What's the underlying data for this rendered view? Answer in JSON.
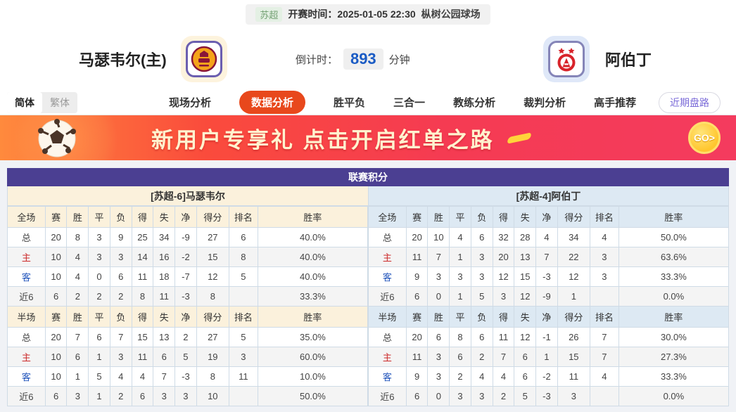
{
  "top_bar": {
    "league_badge": "苏超",
    "kickoff_text": "开赛时间：2025-01-05 22:30",
    "venue": "枞树公园球场"
  },
  "header": {
    "home_name": "马瑟韦尔(主)",
    "away_name": "阿伯丁",
    "countdown_label": "倒计时：",
    "countdown_value": "893",
    "countdown_unit": "分钟"
  },
  "nav": {
    "lang_simplified": "简体",
    "lang_traditional": "繁体",
    "tabs": [
      {
        "label": "现场分析",
        "active": false
      },
      {
        "label": "数据分析",
        "active": true
      },
      {
        "label": "胜平负",
        "active": false
      },
      {
        "label": "三合一",
        "active": false
      },
      {
        "label": "教练分析",
        "active": false
      },
      {
        "label": "裁判分析",
        "active": false
      },
      {
        "label": "高手推荐",
        "active": false
      }
    ],
    "recent_trend_button": "近期盘路"
  },
  "banner": {
    "headline": "新用户专享礼  点击开启红单之路",
    "go_label": "GO>"
  },
  "stats": {
    "title": "联赛积分",
    "columns_full": [
      "全场",
      "赛",
      "胜",
      "平",
      "负",
      "得",
      "失",
      "净",
      "得分",
      "排名",
      "胜率"
    ],
    "columns_half": [
      "半场",
      "赛",
      "胜",
      "平",
      "负",
      "得",
      "失",
      "净",
      "得分",
      "排名",
      "胜率"
    ],
    "home": {
      "team_header": "[苏超-6]马瑟韦尔",
      "full_rows": [
        {
          "label": "总",
          "type": "total-row",
          "values": [
            "20",
            "8",
            "3",
            "9",
            "25",
            "34",
            "-9",
            "27",
            "6",
            "40.0%"
          ]
        },
        {
          "label": "主",
          "type": "home-row",
          "values": [
            "10",
            "4",
            "3",
            "3",
            "14",
            "16",
            "-2",
            "15",
            "8",
            "40.0%"
          ]
        },
        {
          "label": "客",
          "type": "away-row",
          "values": [
            "10",
            "4",
            "0",
            "6",
            "11",
            "18",
            "-7",
            "12",
            "5",
            "40.0%"
          ]
        },
        {
          "label": "近6",
          "type": "recent-row",
          "values": [
            "6",
            "2",
            "2",
            "2",
            "8",
            "11",
            "-3",
            "8",
            "",
            "33.3%"
          ]
        }
      ],
      "half_rows": [
        {
          "label": "总",
          "type": "total-row",
          "values": [
            "20",
            "7",
            "6",
            "7",
            "15",
            "13",
            "2",
            "27",
            "5",
            "35.0%"
          ]
        },
        {
          "label": "主",
          "type": "home-row",
          "values": [
            "10",
            "6",
            "1",
            "3",
            "11",
            "6",
            "5",
            "19",
            "3",
            "60.0%"
          ]
        },
        {
          "label": "客",
          "type": "away-row",
          "values": [
            "10",
            "1",
            "5",
            "4",
            "4",
            "7",
            "-3",
            "8",
            "11",
            "10.0%"
          ]
        },
        {
          "label": "近6",
          "type": "recent-row",
          "values": [
            "6",
            "3",
            "1",
            "2",
            "6",
            "3",
            "3",
            "10",
            "",
            "50.0%"
          ]
        }
      ]
    },
    "away": {
      "team_header": "[苏超-4]阿伯丁",
      "full_rows": [
        {
          "label": "总",
          "type": "total-row",
          "values": [
            "20",
            "10",
            "4",
            "6",
            "32",
            "28",
            "4",
            "34",
            "4",
            "50.0%"
          ]
        },
        {
          "label": "主",
          "type": "home-row",
          "values": [
            "11",
            "7",
            "1",
            "3",
            "20",
            "13",
            "7",
            "22",
            "3",
            "63.6%"
          ]
        },
        {
          "label": "客",
          "type": "away-row",
          "values": [
            "9",
            "3",
            "3",
            "3",
            "12",
            "15",
            "-3",
            "12",
            "3",
            "33.3%"
          ]
        },
        {
          "label": "近6",
          "type": "recent-row",
          "values": [
            "6",
            "0",
            "1",
            "5",
            "3",
            "12",
            "-9",
            "1",
            "",
            "0.0%"
          ]
        }
      ],
      "half_rows": [
        {
          "label": "总",
          "type": "total-row",
          "values": [
            "20",
            "6",
            "8",
            "6",
            "11",
            "12",
            "-1",
            "26",
            "7",
            "30.0%"
          ]
        },
        {
          "label": "主",
          "type": "home-row",
          "values": [
            "11",
            "3",
            "6",
            "2",
            "7",
            "6",
            "1",
            "15",
            "7",
            "27.3%"
          ]
        },
        {
          "label": "客",
          "type": "away-row",
          "values": [
            "9",
            "3",
            "2",
            "4",
            "4",
            "6",
            "-2",
            "11",
            "4",
            "33.3%"
          ]
        },
        {
          "label": "近6",
          "type": "recent-row",
          "values": [
            "6",
            "0",
            "3",
            "3",
            "2",
            "5",
            "-3",
            "3",
            "",
            "0.0%"
          ]
        }
      ]
    }
  },
  "colors": {
    "accent_orange": "#e8481c",
    "title_purple": "#4b3f92",
    "home_panel": "#fbf1dc",
    "away_panel": "#dde9f3",
    "countdown_blue": "#1a5bc4",
    "home_row_red": "#cc2a2a",
    "away_row_blue": "#2255bb",
    "banner_red": "#f43b5e"
  }
}
